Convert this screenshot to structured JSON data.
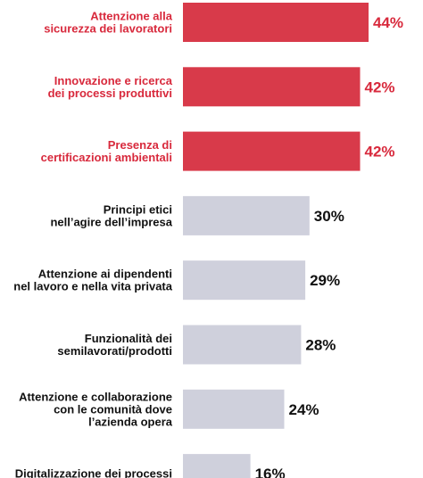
{
  "chart_data": {
    "type": "bar",
    "orientation": "horizontal",
    "categories": [
      [
        "Attenzione alla",
        "sicurezza dei lavoratori"
      ],
      [
        "Innovazione e ricerca",
        "dei processi produttivi"
      ],
      [
        "Presenza di",
        "certificazioni ambientali"
      ],
      [
        "Principi etici",
        "nell’agire dell’impresa"
      ],
      [
        "Attenzione ai dipendenti",
        "nel lavoro e nella vita privata"
      ],
      [
        "Funzionalità dei",
        "semilavorati/prodotti"
      ],
      [
        "Attenzione e collaborazione",
        "con le comunità dove",
        "l’azienda opera"
      ],
      [
        "Digitalizzazione dei processi"
      ]
    ],
    "values": [
      44,
      42,
      42,
      30,
      29,
      28,
      24,
      16
    ],
    "value_labels": [
      "44%",
      "42%",
      "42%",
      "30%",
      "29%",
      "28%",
      "24%",
      "16%"
    ],
    "highlighted": [
      true,
      true,
      true,
      false,
      false,
      false,
      false,
      false
    ],
    "colors": {
      "highlight_bar": "#d83a4a",
      "highlight_text": "#d8293c",
      "default_bar": "#cfd0dc",
      "default_text": "#111111"
    },
    "xlim": [
      0,
      44
    ],
    "grid": false,
    "legend": "none",
    "title": "",
    "xlabel": "",
    "ylabel": ""
  }
}
